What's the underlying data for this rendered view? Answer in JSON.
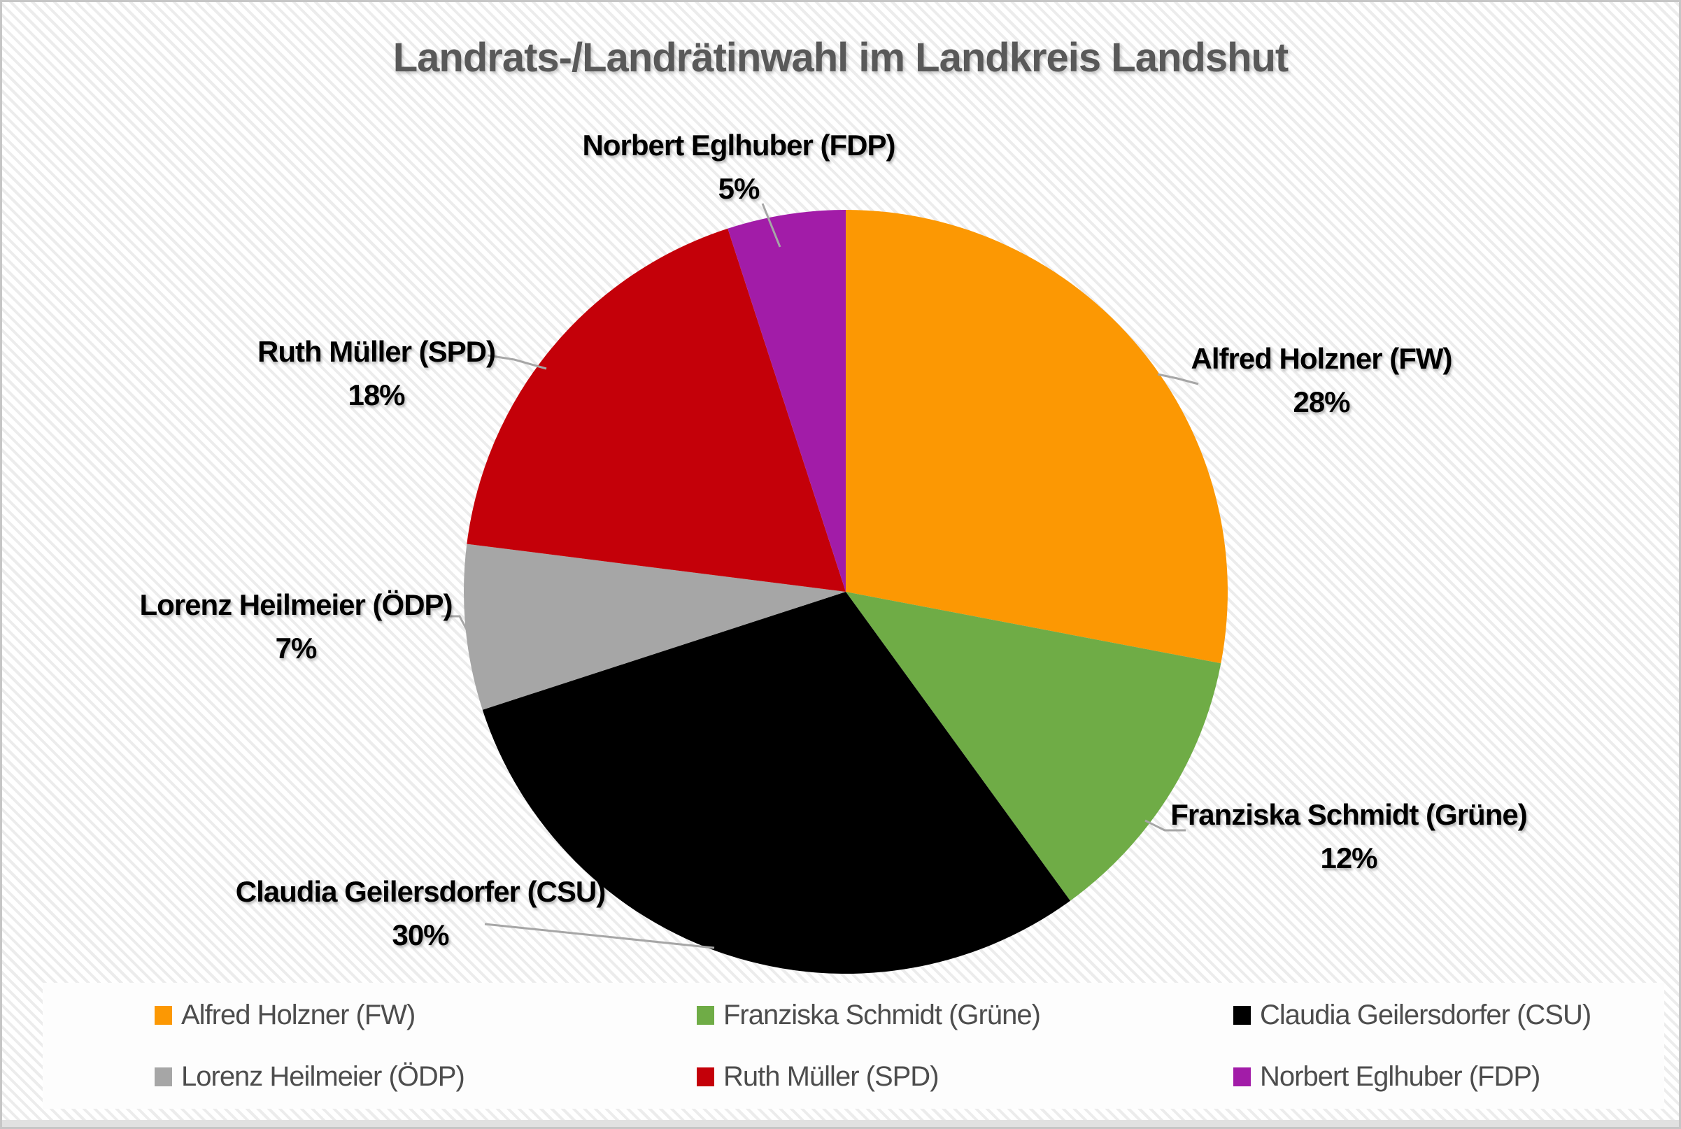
{
  "title": "Landrats-/Landrätinwahl im Landkreis Landshut",
  "chart_data": {
    "type": "pie",
    "title": "Landrats-/Landrätinwahl im Landkreis Landshut",
    "start_angle_deg": 0,
    "direction": "clockwise",
    "legend_position": "bottom",
    "slices": [
      {
        "label": "Alfred Holzner (FW)",
        "value": 28,
        "pct_label": "28%",
        "color": "#FC9803"
      },
      {
        "label": "Franziska Schmidt (Grüne)",
        "value": 12,
        "pct_label": "12%",
        "color": "#6FAC46"
      },
      {
        "label": "Claudia Geilersdorfer (CSU)",
        "value": 30,
        "pct_label": "30%",
        "color": "#000000"
      },
      {
        "label": "Lorenz Heilmeier (ÖDP)",
        "value": 7,
        "pct_label": "7%",
        "color": "#A6A6A6"
      },
      {
        "label": "Ruth Müller (SPD)",
        "value": 18,
        "pct_label": "18%",
        "color": "#C40009"
      },
      {
        "label": "Norbert Eglhuber (FDP)",
        "value": 5,
        "pct_label": "5%",
        "color": "#A21CA8"
      }
    ],
    "leader_line_color": "#a6a6a6",
    "title_color": "#595959",
    "legend_text_color": "#4d4d4d",
    "background": "#ffffff"
  }
}
